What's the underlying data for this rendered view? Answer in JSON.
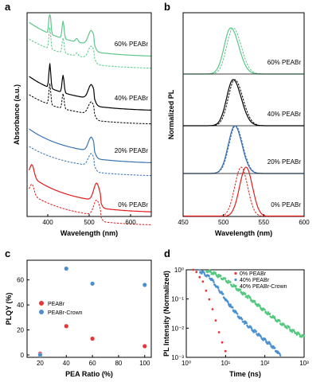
{
  "panel_labels": {
    "a": "a",
    "b": "b",
    "c": "c",
    "d": "d"
  },
  "colors": {
    "p60": "#5cc78a",
    "p40": "#000000",
    "p20": "#3a72b0",
    "p0": "#e31b1b",
    "peabr": "#e8343a",
    "crown": "#4a90d0",
    "green": "#53c97f"
  },
  "chart_data": [
    {
      "id": "a",
      "type": "line",
      "xlabel": "Wavelength (nm)",
      "ylabel": "Absorbance (a.u.)",
      "xlim": [
        350,
        650
      ],
      "xticks": [
        400,
        500,
        600
      ],
      "series_labels": [
        "60% PEABr",
        "40% PEABr",
        "20% PEABr",
        "0% PEABr"
      ],
      "line_styles": [
        "solid",
        "dashed"
      ],
      "features": [
        {
          "name": "60% PEABr",
          "peaks": [
            405,
            437,
            505
          ]
        },
        {
          "name": "40% PEABr",
          "peaks": [
            405,
            437,
            505
          ]
        },
        {
          "name": "20% PEABr",
          "peaks": [
            505
          ]
        },
        {
          "name": "0% PEABr",
          "peaks": [
            360,
            518
          ]
        }
      ]
    },
    {
      "id": "b",
      "type": "line",
      "xlabel": "Wavelength (nm)",
      "ylabel": "Normalized PL",
      "xlim": [
        450,
        600
      ],
      "xticks": [
        450,
        500,
        550,
        600
      ],
      "series_labels": [
        "60% PEABr",
        "40% PEABr",
        "20% PEABr",
        "0% PEABr"
      ],
      "line_styles": [
        "solid",
        "dashed"
      ],
      "peaks_nm": [
        {
          "name": "60% PEABr",
          "solid": 509,
          "dashed": 512
        },
        {
          "name": "40% PEABr",
          "solid": 512,
          "dashed": 514
        },
        {
          "name": "20% PEABr",
          "solid": 514,
          "dashed": 515
        },
        {
          "name": "0% PEABr",
          "solid": 528,
          "dashed": 522
        }
      ]
    },
    {
      "id": "c",
      "type": "scatter",
      "xlabel": "PEA Ratio (%)",
      "ylabel": "PLQY (%)",
      "xlim": [
        10,
        105
      ],
      "ylim": [
        0,
        70
      ],
      "xticks": [
        20,
        40,
        60,
        80,
        100
      ],
      "yticks": [
        0,
        20,
        40,
        60
      ],
      "legend": "middle-left",
      "series": [
        {
          "name": "PEABr",
          "x": [
            20,
            40,
            60,
            100
          ],
          "y": [
            1,
            23,
            13,
            7
          ]
        },
        {
          "name": "PEABr-Crown",
          "x": [
            20,
            40,
            60,
            100
          ],
          "y": [
            0,
            69,
            57,
            56
          ]
        }
      ]
    },
    {
      "id": "d",
      "type": "scatter",
      "xlabel": "Time (ns)",
      "ylabel": "PL Intensity (Normalized)",
      "xscale": "log",
      "yscale": "log",
      "xlim": [
        1,
        1000
      ],
      "ylim": [
        0.001,
        1
      ],
      "xticks": [
        "10⁰",
        "10¹",
        "10²",
        "10³"
      ],
      "yticks": [
        "10⁰",
        "10⁻¹",
        "10⁻²",
        "10⁻³"
      ],
      "legend": "top-right",
      "series": [
        {
          "name": "0% PEABr",
          "x": [
            1.5,
            2.5,
            4,
            5.5,
            7,
            8.5,
            10,
            12
          ],
          "y": [
            1,
            0.45,
            0.08,
            0.02,
            0.007,
            0.003,
            0.0016,
            0.001
          ]
        },
        {
          "name": "40% PEABr",
          "x": [
            2,
            4,
            7,
            12,
            20,
            40,
            80,
            150,
            250
          ],
          "y": [
            1,
            0.55,
            0.2,
            0.07,
            0.028,
            0.011,
            0.005,
            0.0025,
            0.0012
          ]
        },
        {
          "name": "40% PEABr-Crown",
          "x": [
            3,
            5,
            10,
            20,
            40,
            80,
            150,
            300,
            600,
            1000
          ],
          "y": [
            1,
            0.75,
            0.45,
            0.22,
            0.11,
            0.05,
            0.025,
            0.013,
            0.007,
            0.005
          ]
        }
      ]
    }
  ]
}
